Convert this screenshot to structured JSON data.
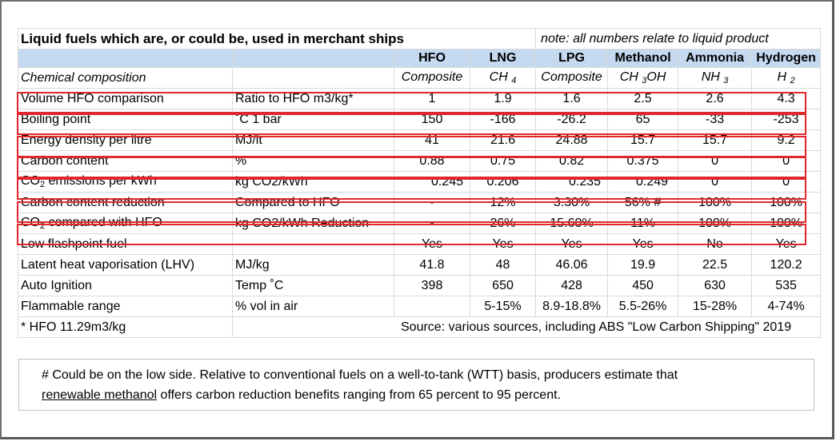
{
  "title": "Liquid fuels which are, or could be, used in merchant ships",
  "note": "note: all numbers relate to liquid product",
  "headers": [
    "",
    "",
    "HFO",
    "LNG",
    "LPG",
    "Methanol",
    "Ammonia",
    "Hydrogen"
  ],
  "composition": {
    "label": "Chemical composition",
    "values": [
      {
        "main": "Composite",
        "sub": "",
        "tail": ""
      },
      {
        "main": "CH ",
        "sub": "4",
        "tail": ""
      },
      {
        "main": "Composite",
        "sub": "",
        "tail": ""
      },
      {
        "main": "CH ",
        "sub": "3",
        "tail": "OH"
      },
      {
        "main": "NH ",
        "sub": "3",
        "tail": ""
      },
      {
        "main": "H ",
        "sub": "2",
        "tail": ""
      }
    ]
  },
  "rows": [
    {
      "label": "Volume HFO comparison",
      "unit": "Ratio to HFO m3/kg*",
      "values": [
        "1",
        "1.9",
        "1.6",
        "2.5",
        "2.6",
        "4.3"
      ]
    },
    {
      "label": "Boiling point",
      "unit": "˚C 1 bar",
      "values": [
        "150",
        "-166",
        "-26.2",
        "65",
        "-33",
        "-253"
      ]
    },
    {
      "label": "Energy density per litre",
      "unit": "MJ/lt",
      "values": [
        "41",
        "21.6",
        "24.88",
        "15.7",
        "15.7",
        "9.2"
      ]
    },
    {
      "label": "Carbon content",
      "unit": "%",
      "values": [
        "0.88",
        "0.75",
        "0.82",
        "0.375",
        "0",
        "0"
      ]
    },
    {
      "label_pre": "CO",
      "label_sub": "2",
      "label_post": " emissions per kWh",
      "unit": "kg CO2/kWh",
      "values": [
        "0.245",
        "0.206",
        "0.235",
        "0.249",
        "0",
        "0"
      ]
    },
    {
      "label": "Carbon content reduction",
      "unit": "Compared to HFO",
      "values": [
        "-",
        "12%",
        "3.30%",
        "56% #",
        "100%",
        "100%"
      ]
    },
    {
      "label_pre": "CO",
      "label_sub": "2",
      "label_post": " compared with HFO",
      "unit": "kg CO2/kWh Reduction",
      "values": [
        "-",
        "26%",
        "15.60%",
        "11%",
        "100%",
        "100%"
      ]
    },
    {
      "label": "Low flashpoint fuel",
      "unit": "",
      "values": [
        "Yes",
        "Yes",
        "Yes",
        "Yes",
        "No",
        "Yes"
      ]
    },
    {
      "label": "Latent heat vaporisation (LHV)",
      "unit": "MJ/kg",
      "values": [
        "41.8",
        "48",
        "46.06",
        "19.9",
        "22.5",
        "120.2"
      ]
    },
    {
      "label": "Auto Ignition",
      "unit": "Temp ˚C",
      "values": [
        "398",
        "650",
        "428",
        "450",
        "630",
        "535"
      ]
    },
    {
      "label": "Flammable range",
      "unit": "% vol in air",
      "values": [
        "",
        "5-15%",
        "8.9-18.8%",
        "5.5-26%",
        "15-28%",
        "4-74%"
      ]
    }
  ],
  "footer_left": "* HFO 11.29m3/kg",
  "footer_source": "Source: various sources, including ABS \"Low Carbon Shipping\" 2019",
  "footnote": {
    "line1": "# Could be on the low side. Relative to conventional fuels on a well-to-tank (WTT) basis, producers estimate that",
    "link": "renewable methanol",
    "line2_rest": " offers carbon reduction benefits ranging from 65 percent to 95 percent."
  },
  "highlight_color": "#e0282c",
  "header_bg": "#c5d9f1"
}
